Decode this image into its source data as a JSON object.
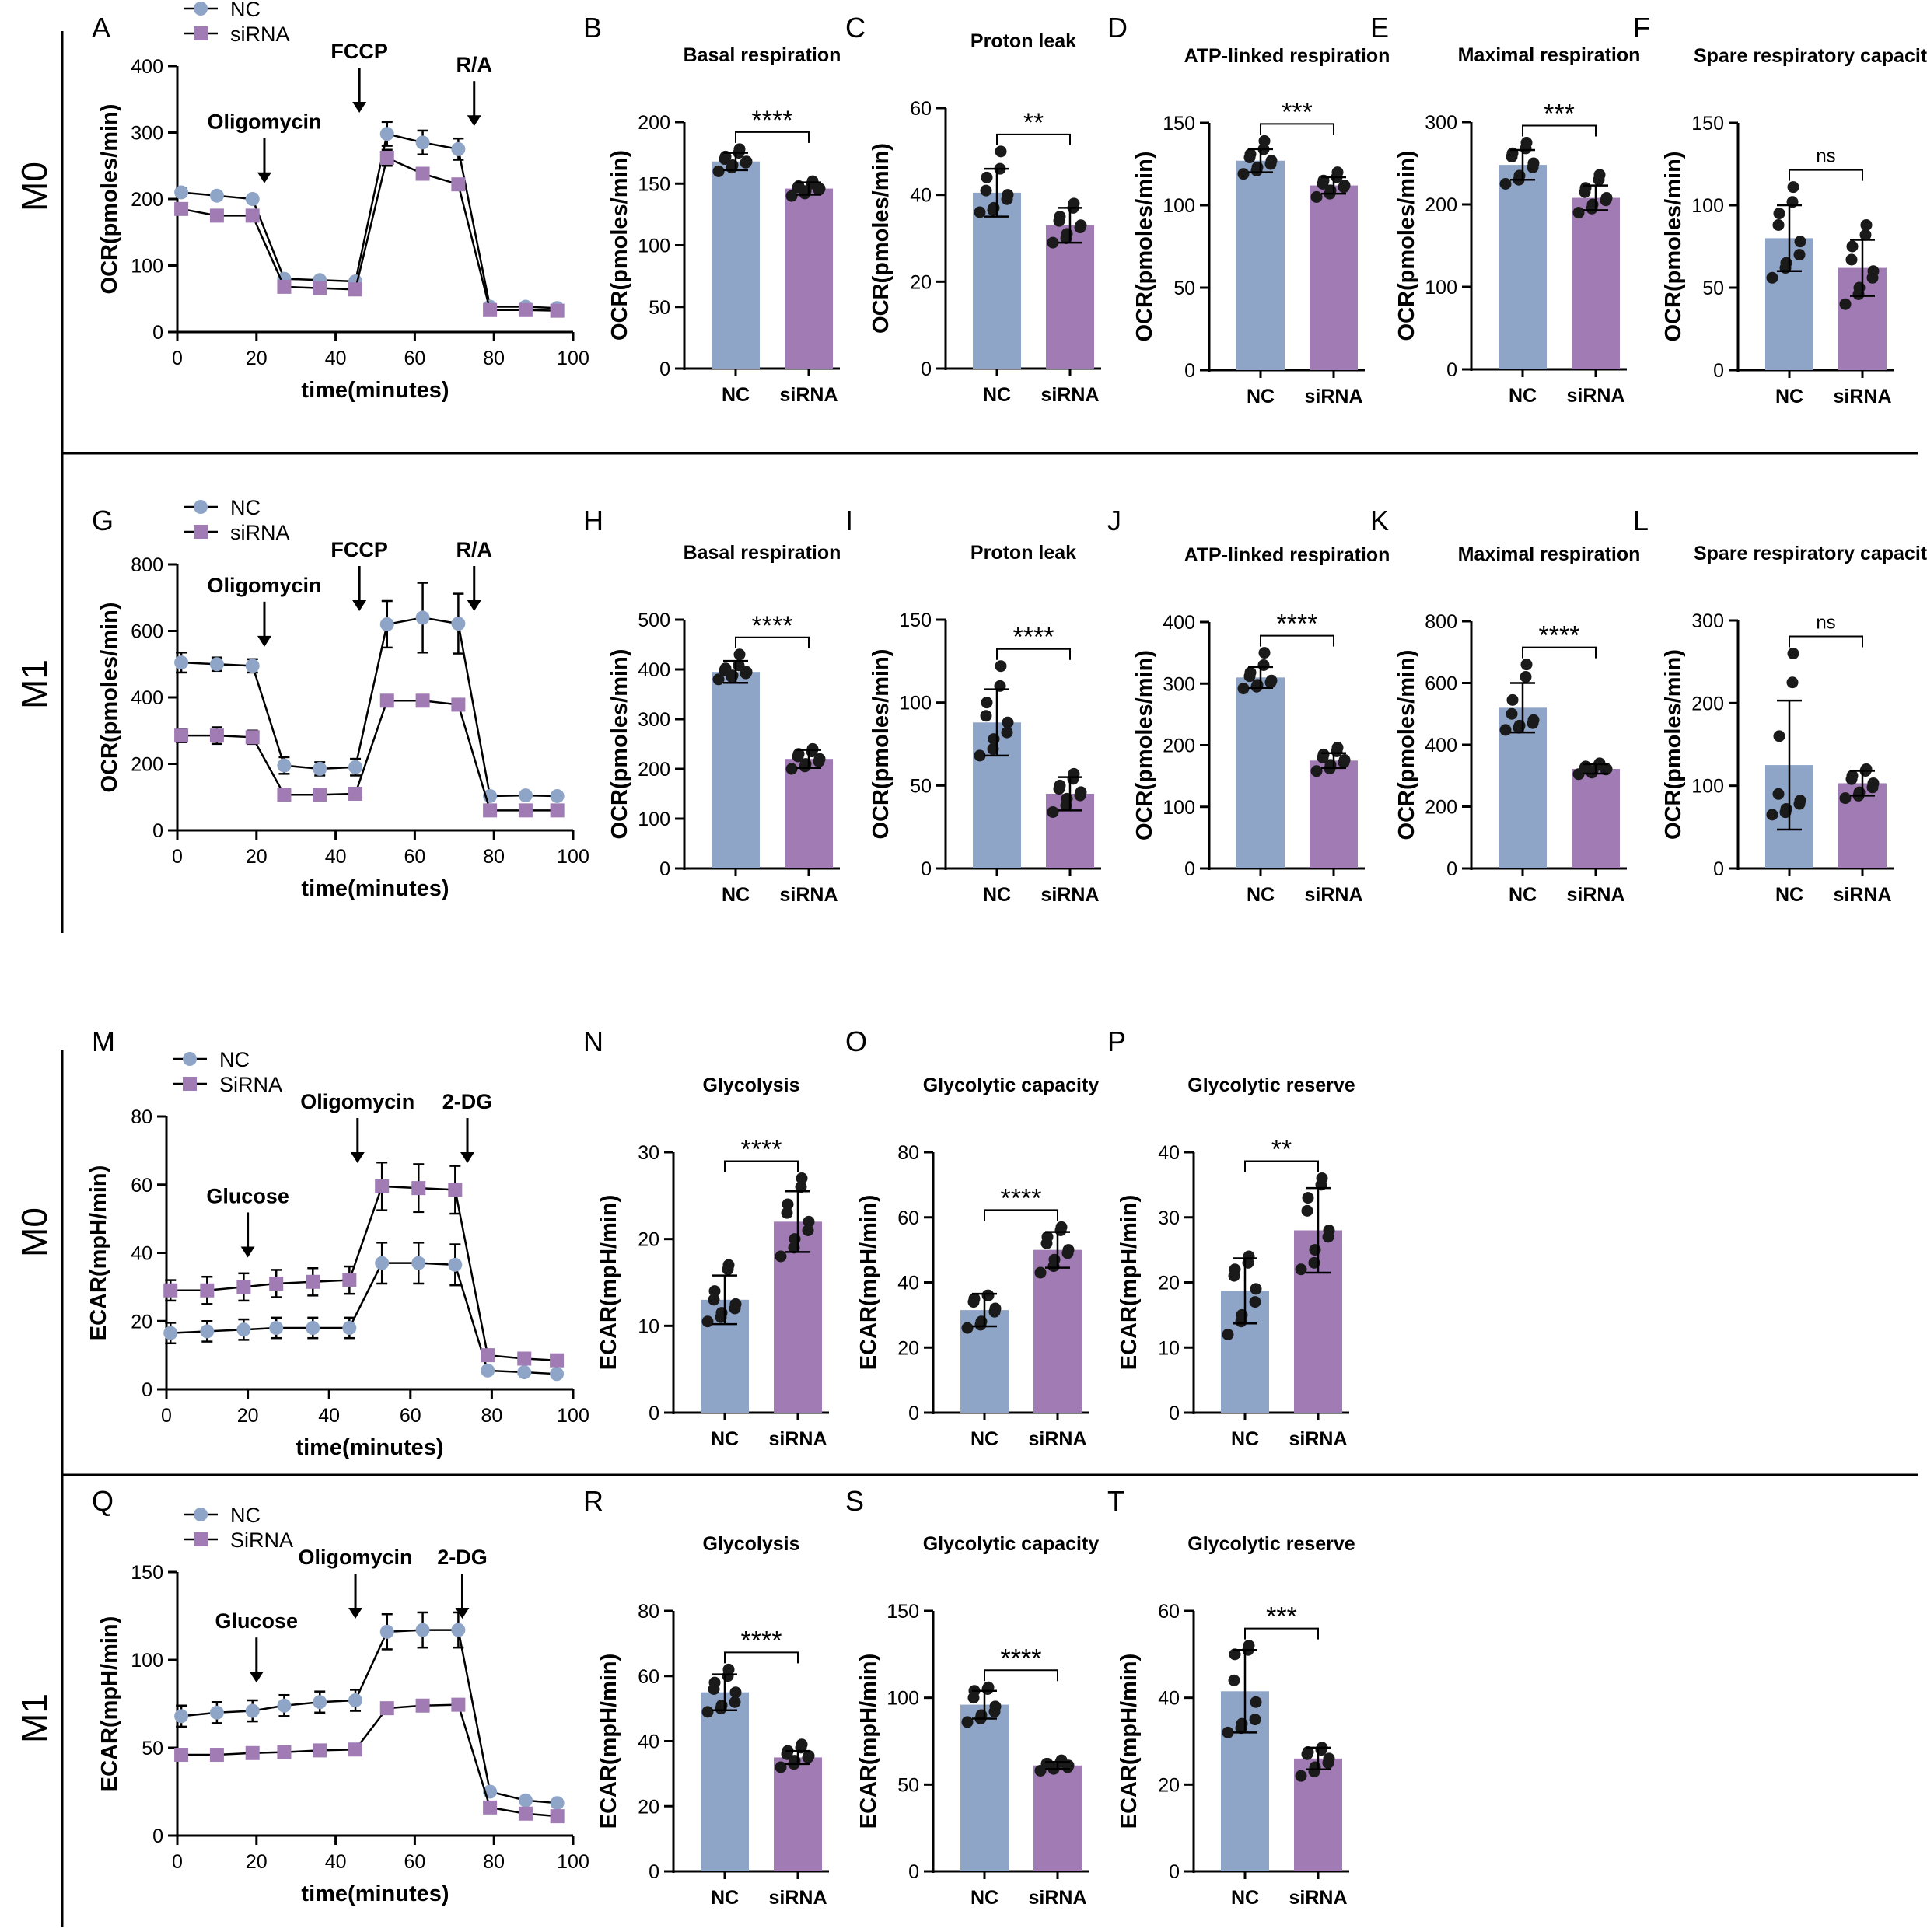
{
  "colors": {
    "nc": "#8fa5c8",
    "sirna": "#a07bb4",
    "line": "#000000",
    "dot": "#1a1a1a"
  },
  "row_labels": [
    "M0",
    "M1",
    "M0",
    "M1"
  ],
  "chart_data": [
    {
      "id": "A",
      "type": "line",
      "xlabel": "time(minutes)",
      "ylabel": "OCR(pmoles/min)",
      "ylim": [
        0,
        400
      ],
      "yticks": [
        0,
        100,
        200,
        300,
        400
      ],
      "xlim": [
        0,
        100
      ],
      "xticks": [
        0,
        20,
        40,
        60,
        80,
        100
      ],
      "legend": [
        "NC",
        "siRNA"
      ],
      "x": [
        1,
        10,
        19,
        27,
        36,
        45,
        53,
        62,
        71,
        79,
        88,
        96
      ],
      "series": [
        {
          "name": "NC",
          "values": [
            210,
            205,
            200,
            80,
            78,
            76,
            298,
            285,
            275,
            38,
            38,
            36
          ],
          "err": [
            6,
            5,
            5,
            4,
            4,
            4,
            18,
            18,
            16,
            5,
            5,
            5
          ]
        },
        {
          "name": "siRNA",
          "values": [
            185,
            175,
            175,
            68,
            66,
            64,
            262,
            238,
            222,
            33,
            33,
            32
          ],
          "err": [
            5,
            4,
            4,
            4,
            4,
            3,
            12,
            8,
            8,
            4,
            4,
            4
          ]
        }
      ],
      "annotations": [
        {
          "text": "Oligomycin",
          "arrow_x": 22
        },
        {
          "text": "FCCP",
          "arrow_x": 46
        },
        {
          "text": "R/A",
          "arrow_x": 75
        }
      ]
    },
    {
      "id": "B",
      "type": "bar",
      "title": "Basal respiration",
      "ylabel": "OCR(pmoles/min)",
      "ylim": [
        0,
        200
      ],
      "yticks": [
        0,
        50,
        100,
        150,
        200
      ],
      "categories": [
        "NC",
        "siRNA"
      ],
      "values": [
        168,
        146
      ],
      "err": [
        7,
        5
      ],
      "sig": "****",
      "points": [
        [
          160,
          163,
          165,
          167,
          168,
          170,
          172,
          175,
          178
        ],
        [
          140,
          142,
          144,
          145,
          146,
          147,
          148,
          150,
          152
        ]
      ]
    },
    {
      "id": "C",
      "type": "bar",
      "title": "Proton leak",
      "ylabel": "OCR(pmoles/min)",
      "ylim": [
        0,
        60
      ],
      "yticks": [
        0,
        20,
        40,
        60
      ],
      "categories": [
        "NC",
        "siRNA"
      ],
      "values": [
        40.5,
        33
      ],
      "err": [
        5.5,
        4
      ],
      "sig": "**",
      "points": [
        [
          36,
          36.5,
          37,
          39,
          40,
          41,
          44,
          46,
          50
        ],
        [
          29,
          30,
          31,
          32.5,
          33,
          34,
          35,
          37,
          38
        ]
      ]
    },
    {
      "id": "D",
      "type": "bar",
      "title": "ATP-linked respiration",
      "ylabel": "OCR(pmoles/min)",
      "ylim": [
        0,
        150
      ],
      "yticks": [
        0,
        50,
        100,
        150
      ],
      "categories": [
        "NC",
        "siRNA"
      ],
      "values": [
        127,
        112
      ],
      "err": [
        7,
        5
      ],
      "sig": "***",
      "points": [
        [
          119,
          121,
          123,
          125,
          127,
          129,
          131,
          134,
          139
        ],
        [
          105,
          107,
          109,
          111,
          112,
          113,
          115,
          117,
          120
        ]
      ]
    },
    {
      "id": "E",
      "type": "bar",
      "title": "Maximal respiration",
      "ylabel": "OCR(pmoles/min)",
      "ylim": [
        0,
        300
      ],
      "yticks": [
        0,
        100,
        200,
        300
      ],
      "categories": [
        "NC",
        "siRNA"
      ],
      "values": [
        248,
        208
      ],
      "err": [
        18,
        15
      ],
      "sig": "***",
      "points": [
        [
          225,
          230,
          235,
          245,
          250,
          258,
          262,
          268,
          275
        ],
        [
          190,
          195,
          200,
          205,
          208,
          215,
          220,
          230,
          236
        ]
      ]
    },
    {
      "id": "F",
      "type": "bar",
      "title": "Spare respiratory capacity",
      "ylabel": "OCR(pmoles/min)",
      "ylim": [
        0,
        150
      ],
      "yticks": [
        0,
        50,
        100,
        150
      ],
      "categories": [
        "NC",
        "siRNA"
      ],
      "values": [
        80,
        62
      ],
      "err": [
        20,
        17
      ],
      "sig": "ns",
      "points": [
        [
          56,
          62,
          65,
          70,
          78,
          88,
          95,
          102,
          111
        ],
        [
          40,
          46,
          50,
          56,
          60,
          67,
          75,
          82,
          88
        ]
      ]
    },
    {
      "id": "G",
      "type": "line",
      "xlabel": "time(minutes)",
      "ylabel": "OCR(pmoles/min)",
      "ylim": [
        0,
        800
      ],
      "yticks": [
        0,
        200,
        400,
        600,
        800
      ],
      "xlim": [
        0,
        100
      ],
      "xticks": [
        0,
        20,
        40,
        60,
        80,
        100
      ],
      "legend": [
        "NC",
        "siRNA"
      ],
      "x": [
        1,
        10,
        19,
        27,
        36,
        45,
        53,
        62,
        71,
        79,
        88,
        96
      ],
      "series": [
        {
          "name": "NC",
          "values": [
            505,
            500,
            495,
            195,
            185,
            190,
            620,
            640,
            622,
            103,
            105,
            103
          ],
          "err": [
            30,
            20,
            20,
            25,
            20,
            25,
            70,
            105,
            90,
            10,
            10,
            10
          ]
        },
        {
          "name": "siRNA",
          "values": [
            285,
            285,
            280,
            107,
            107,
            110,
            390,
            390,
            378,
            60,
            60,
            60
          ],
          "err": [
            20,
            25,
            20,
            10,
            8,
            10,
            15,
            15,
            12,
            8,
            8,
            8
          ]
        }
      ],
      "annotations": [
        {
          "text": "Oligomycin",
          "arrow_x": 22
        },
        {
          "text": "FCCP",
          "arrow_x": 46
        },
        {
          "text": "R/A",
          "arrow_x": 75
        }
      ]
    },
    {
      "id": "H",
      "type": "bar",
      "title": "Basal respiration",
      "ylabel": "OCR(pmoles/min)",
      "ylim": [
        0,
        500
      ],
      "yticks": [
        0,
        100,
        200,
        300,
        400,
        500
      ],
      "categories": [
        "NC",
        "siRNA"
      ],
      "values": [
        395,
        220
      ],
      "err": [
        22,
        18
      ],
      "sig": "****",
      "points": [
        [
          380,
          385,
          388,
          392,
          395,
          398,
          402,
          408,
          430
        ],
        [
          200,
          205,
          210,
          215,
          220,
          225,
          230,
          235,
          240
        ]
      ]
    },
    {
      "id": "I",
      "type": "bar",
      "title": "Proton leak",
      "ylabel": "OCR(pmoles/min)",
      "ylim": [
        0,
        150
      ],
      "yticks": [
        0,
        50,
        100,
        150
      ],
      "categories": [
        "NC",
        "siRNA"
      ],
      "values": [
        88,
        45
      ],
      "err": [
        20,
        10
      ],
      "sig": "****",
      "points": [
        [
          68,
          72,
          78,
          82,
          88,
          92,
          100,
          110,
          122
        ],
        [
          34,
          38,
          42,
          44,
          46,
          48,
          50,
          54,
          57
        ]
      ]
    },
    {
      "id": "J",
      "type": "bar",
      "title": "ATP-linked respiration",
      "ylabel": "OCR(pmoles/min)",
      "ylim": [
        0,
        400
      ],
      "yticks": [
        0,
        100,
        200,
        300,
        400
      ],
      "categories": [
        "NC",
        "siRNA"
      ],
      "values": [
        310,
        175
      ],
      "err": [
        17,
        12
      ],
      "sig": "****",
      "points": [
        [
          292,
          295,
          298,
          302,
          305,
          312,
          318,
          330,
          350
        ],
        [
          158,
          162,
          168,
          172,
          176,
          180,
          185,
          190,
          196
        ]
      ]
    },
    {
      "id": "K",
      "type": "bar",
      "title": "Maximal respiration",
      "ylabel": "OCR(pmoles/min)",
      "ylim": [
        0,
        800
      ],
      "yticks": [
        0,
        200,
        400,
        600,
        800
      ],
      "categories": [
        "NC",
        "siRNA"
      ],
      "values": [
        520,
        322
      ],
      "err": [
        80,
        15
      ],
      "sig": "****",
      "points": [
        [
          448,
          455,
          462,
          470,
          480,
          500,
          545,
          620,
          660
        ],
        [
          305,
          310,
          315,
          320,
          322,
          325,
          330,
          335,
          340
        ]
      ]
    },
    {
      "id": "L",
      "type": "bar",
      "title": "Spare respiratory capacity",
      "ylabel": "OCR(pmoles/min)",
      "ylim": [
        0,
        300
      ],
      "yticks": [
        0,
        100,
        200,
        300
      ],
      "categories": [
        "NC",
        "siRNA"
      ],
      "values": [
        125,
        103
      ],
      "err": [
        78,
        15
      ],
      "sig": "ns",
      "points": [
        [
          65,
          68,
          72,
          78,
          82,
          90,
          160,
          225,
          260
        ],
        [
          85,
          88,
          92,
          98,
          103,
          108,
          112,
          118,
          120
        ]
      ]
    },
    {
      "id": "M",
      "type": "line",
      "xlabel": "time(minutes)",
      "ylabel": "ECAR(mpH/min)",
      "ylim": [
        0,
        80
      ],
      "yticks": [
        0,
        20,
        40,
        60,
        80
      ],
      "xlim": [
        0,
        100
      ],
      "xticks": [
        0,
        20,
        40,
        60,
        80,
        100
      ],
      "legend": [
        "NC",
        "SiRNA"
      ],
      "x": [
        1,
        10,
        19,
        27,
        36,
        45,
        53,
        62,
        71,
        79,
        88,
        96
      ],
      "series": [
        {
          "name": "NC",
          "values": [
            16.5,
            17,
            17.5,
            18,
            18,
            18,
            37,
            37,
            36.5,
            5.5,
            5,
            4.5
          ],
          "err": [
            3,
            3,
            3,
            3,
            3,
            3,
            6,
            6,
            6,
            1,
            1,
            1
          ]
        },
        {
          "name": "SiRNA",
          "values": [
            29,
            29,
            30,
            31,
            31.5,
            32,
            59.5,
            59,
            58.5,
            10,
            9,
            8.5
          ],
          "err": [
            3,
            4,
            4,
            4,
            4,
            4,
            7,
            7,
            7,
            1.5,
            1.2,
            1.2
          ]
        }
      ],
      "annotations": [
        {
          "text": "Glucose",
          "arrow_x": 20
        },
        {
          "text": "Oligomycin",
          "arrow_x": 47
        },
        {
          "text": "2-DG",
          "arrow_x": 74
        }
      ]
    },
    {
      "id": "N",
      "type": "bar",
      "title": "Glycolysis",
      "ylabel": "ECAR(mpH/min)",
      "ylim": [
        0,
        30
      ],
      "yticks": [
        0,
        10,
        20,
        30
      ],
      "categories": [
        "NC",
        "siRNA"
      ],
      "values": [
        13,
        22
      ],
      "err": [
        2.8,
        3.5
      ],
      "sig": "****",
      "points": [
        [
          10.5,
          11,
          11.5,
          12,
          12.5,
          13,
          14,
          16.5,
          17
        ],
        [
          18,
          19,
          20,
          21,
          22,
          23,
          24,
          26,
          27
        ]
      ]
    },
    {
      "id": "O",
      "type": "bar",
      "title": "Glycolytic capacity",
      "ylabel": "ECAR(mpH/min)",
      "ylim": [
        0,
        80
      ],
      "yticks": [
        0,
        20,
        40,
        60,
        80
      ],
      "categories": [
        "NC",
        "siRNA"
      ],
      "values": [
        31.5,
        50
      ],
      "err": [
        5,
        5.5
      ],
      "sig": "****",
      "points": [
        [
          26,
          27,
          28,
          31,
          32,
          34,
          35,
          36,
          36
        ],
        [
          43,
          45,
          47,
          49,
          50,
          52,
          54,
          56,
          57
        ]
      ]
    },
    {
      "id": "P",
      "type": "bar",
      "title": "Glycolytic reserve",
      "ylabel": "ECAR(mpH/min)",
      "ylim": [
        0,
        40
      ],
      "yticks": [
        0,
        10,
        20,
        30,
        40
      ],
      "categories": [
        "NC",
        "siRNA"
      ],
      "values": [
        18.7,
        28
      ],
      "err": [
        5,
        6.5
      ],
      "sig": "**",
      "points": [
        [
          12,
          14,
          15,
          17,
          19,
          21,
          22,
          23,
          24
        ],
        [
          22,
          23,
          25,
          27,
          28,
          31,
          33,
          35,
          36
        ]
      ]
    },
    {
      "id": "Q",
      "type": "line",
      "xlabel": "time(minutes)",
      "ylabel": "ECAR(mpH/min)",
      "ylim": [
        0,
        150
      ],
      "yticks": [
        0,
        50,
        100,
        150
      ],
      "xlim": [
        0,
        100
      ],
      "xticks": [
        0,
        20,
        40,
        60,
        80,
        100
      ],
      "legend": [
        "NC",
        "SiRNA"
      ],
      "x": [
        1,
        10,
        19,
        27,
        36,
        45,
        53,
        62,
        71,
        79,
        88,
        96
      ],
      "series": [
        {
          "name": "NC",
          "values": [
            68,
            70,
            71,
            74,
            76,
            77,
            116,
            117,
            117,
            25,
            20,
            18.5
          ],
          "err": [
            6,
            6,
            6,
            6,
            6,
            6,
            10,
            10,
            10,
            2,
            2,
            2
          ]
        },
        {
          "name": "SiRNA",
          "values": [
            46,
            46,
            47,
            47.5,
            48.5,
            49,
            72.5,
            74,
            74.5,
            16,
            12.5,
            11
          ],
          "err": [
            2,
            2,
            2,
            2,
            2,
            2,
            3,
            3,
            3,
            2,
            2,
            2
          ]
        }
      ],
      "annotations": [
        {
          "text": "Glucose",
          "arrow_x": 20
        },
        {
          "text": "Oligomycin",
          "arrow_x": 45
        },
        {
          "text": "2-DG",
          "arrow_x": 72
        }
      ]
    },
    {
      "id": "R",
      "type": "bar",
      "title": "Glycolysis",
      "ylabel": "ECAR(mpH/min)",
      "ylim": [
        0,
        80
      ],
      "yticks": [
        0,
        20,
        40,
        60,
        80
      ],
      "categories": [
        "NC",
        "siRNA"
      ],
      "values": [
        55,
        35
      ],
      "err": [
        5.5,
        2
      ],
      "sig": "****",
      "points": [
        [
          49,
          50,
          51,
          52,
          55,
          56,
          58,
          60,
          62
        ],
        [
          32,
          33,
          34,
          35,
          35.5,
          36,
          37,
          38,
          39
        ]
      ]
    },
    {
      "id": "S",
      "type": "bar",
      "title": "Glycolytic capacity",
      "ylabel": "ECAR(mpH/min)",
      "ylim": [
        0,
        150
      ],
      "yticks": [
        0,
        50,
        100,
        150
      ],
      "categories": [
        "NC",
        "siRNA"
      ],
      "values": [
        96,
        61
      ],
      "err": [
        8,
        2
      ],
      "sig": "****",
      "points": [
        [
          86,
          88,
          90,
          92,
          95,
          100,
          104,
          105,
          106
        ],
        [
          58,
          59,
          60,
          60,
          61,
          62,
          62,
          63,
          64
        ]
      ]
    },
    {
      "id": "T",
      "type": "bar",
      "title": "Glycolytic reserve",
      "ylabel": "ECAR(mpH/min)",
      "ylim": [
        0,
        60
      ],
      "yticks": [
        0,
        20,
        40,
        60
      ],
      "categories": [
        "NC",
        "siRNA"
      ],
      "values": [
        41.5,
        26
      ],
      "err": [
        9.5,
        2.5
      ],
      "sig": "***",
      "points": [
        [
          32,
          33,
          34,
          35,
          39,
          44,
          50,
          51,
          52
        ],
        [
          22,
          23,
          24,
          25,
          26,
          27,
          27.5,
          28,
          28.5
        ]
      ]
    }
  ]
}
